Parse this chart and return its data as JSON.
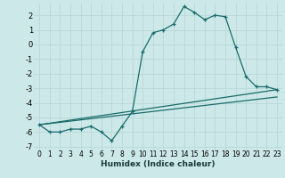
{
  "xlabel": "Humidex (Indice chaleur)",
  "bg_color": "#cce8e8",
  "grid_color": "#b8d8d8",
  "line_color": "#1a6b6b",
  "xlim": [
    -0.5,
    23.5
  ],
  "ylim": [
    -7.2,
    2.8
  ],
  "yticks": [
    -7,
    -6,
    -5,
    -4,
    -3,
    -2,
    -1,
    0,
    1,
    2
  ],
  "xticks": [
    0,
    1,
    2,
    3,
    4,
    5,
    6,
    7,
    8,
    9,
    10,
    11,
    12,
    13,
    14,
    15,
    16,
    17,
    18,
    19,
    20,
    21,
    22,
    23
  ],
  "curve1_x": [
    0,
    1,
    2,
    3,
    4,
    5,
    6,
    7,
    8,
    9,
    10,
    11,
    12,
    13,
    14,
    15,
    16,
    17,
    18,
    19,
    20,
    21,
    22,
    23
  ],
  "curve1_y": [
    -5.5,
    -6.0,
    -6.0,
    -5.8,
    -5.8,
    -5.6,
    -6.0,
    -6.6,
    -5.6,
    -4.6,
    -0.5,
    0.8,
    1.0,
    1.4,
    2.6,
    2.2,
    1.7,
    2.0,
    1.9,
    -0.2,
    -2.2,
    -2.9,
    -2.9,
    -3.1
  ],
  "line2_x0": 0,
  "line2_y0": -5.5,
  "line2_x1": 23,
  "line2_y1": -3.1,
  "line3_x0": 0,
  "line3_y0": -5.5,
  "line3_x1": 23,
  "line3_y1": -3.6
}
